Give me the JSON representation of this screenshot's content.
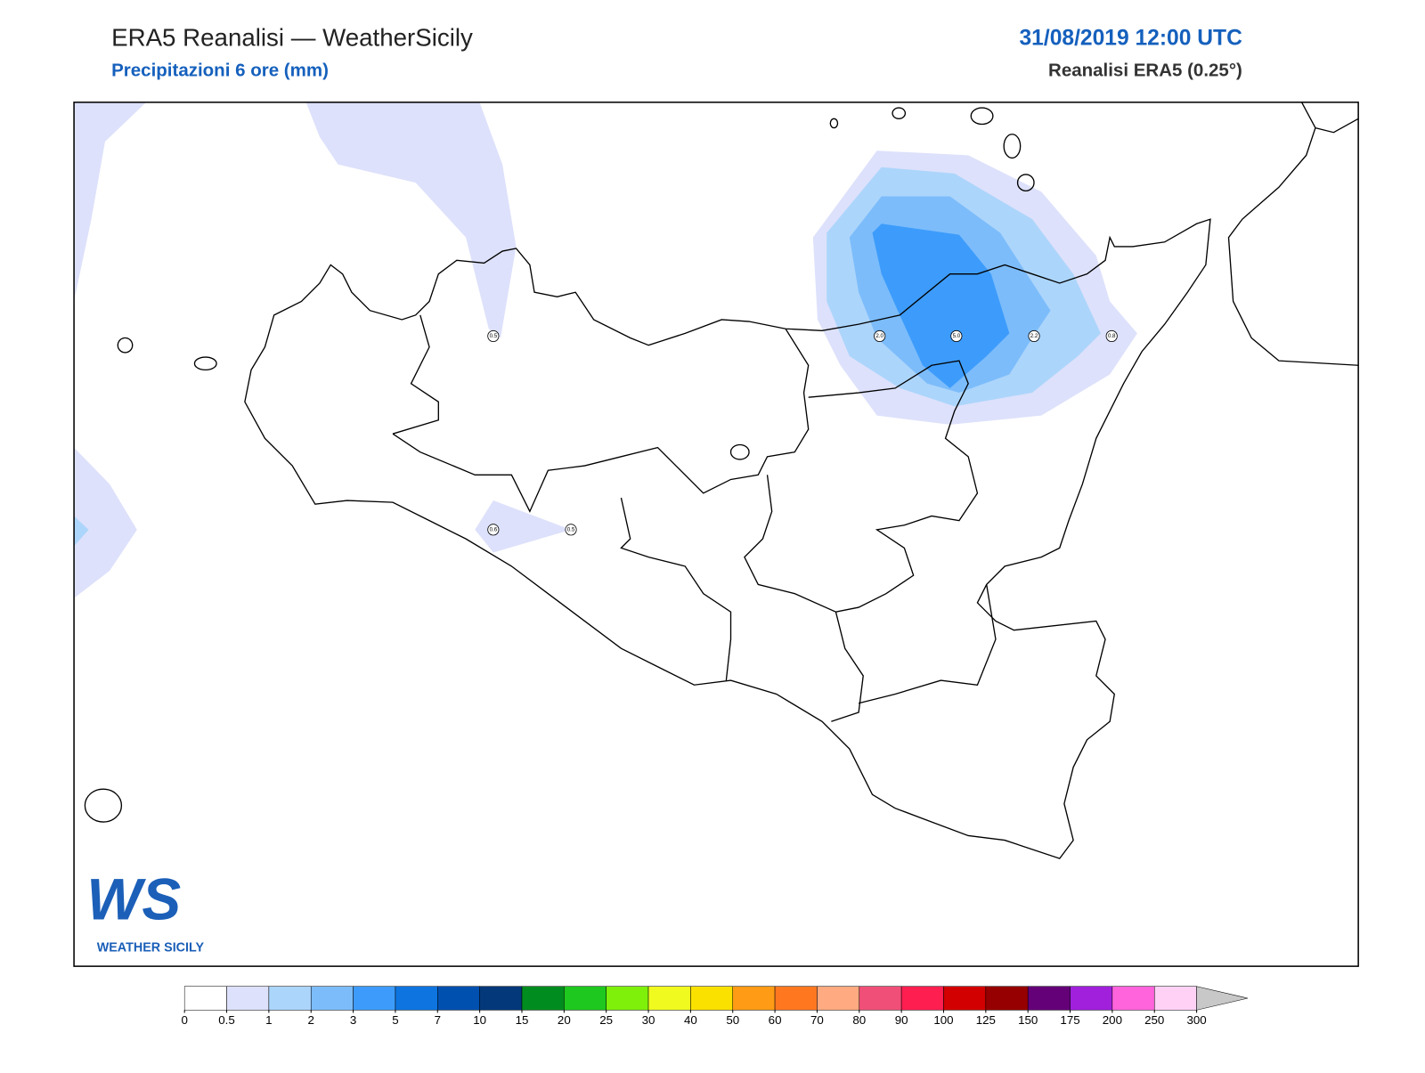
{
  "header": {
    "title": "ERA5 Reanalisi — WeatherSicily",
    "subtitle": "Precipitazioni 6 ore (mm)",
    "datetime": "31/08/2019 12:00 UTC",
    "source": "Reanalisi ERA5 (0.25°)"
  },
  "stations": [
    {
      "value": 0.5,
      "label": "0.5"
    },
    {
      "value": 2,
      "label": "2.0"
    },
    {
      "value": 5,
      "label": "5.0"
    },
    {
      "value": 2.2,
      "label": "2.2"
    },
    {
      "value": 0.8,
      "label": "0.8"
    },
    {
      "value": 0.6,
      "label": "0.6"
    },
    {
      "value": 0.5,
      "label": "0.5"
    }
  ],
  "colorbar": {
    "levels": [
      0,
      0.5,
      1,
      2,
      3,
      5,
      7,
      10,
      15,
      20,
      25,
      30,
      40,
      50,
      60,
      70,
      80,
      90,
      100,
      125,
      150,
      175,
      200,
      250,
      300
    ],
    "colors": [
      "#ffffff",
      "#dde1fb",
      "#acd5fb",
      "#7cbcfb",
      "#3d9cfb",
      "#0d74e0",
      "#0050b0",
      "#03387a",
      "#008c1e",
      "#1ec81e",
      "#7ef00a",
      "#f0fa1e",
      "#fae100",
      "#ff9b14",
      "#ff7820",
      "#ffaa80",
      "#f05078",
      "#ff1e50",
      "#d20000",
      "#960000",
      "#640078",
      "#a020dc",
      "#ff64dc",
      "#ffd2f5"
    ],
    "extend_color": "#c8c8c8"
  },
  "logo": {
    "mark": "WS",
    "name": "WEATHER SICILY"
  }
}
